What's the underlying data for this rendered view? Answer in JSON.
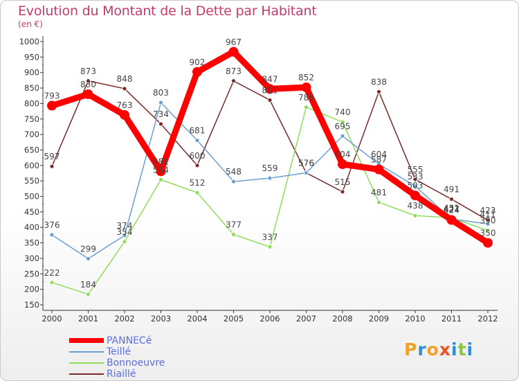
{
  "title": "Evolution du Montant de la Dette par Habitant",
  "unit": "(en €)",
  "brand": {
    "text": "Proxiti",
    "letters": [
      "P",
      "r",
      "o",
      "x",
      "i",
      "t",
      "i"
    ],
    "colors": [
      "#f2a12a",
      "#2a8fd8",
      "#f2a12a",
      "#e8531e",
      "#2a8fd8",
      "#8bc34a",
      "#2a8fd8"
    ]
  },
  "chart_data": {
    "type": "line",
    "title": "Evolution du Montant de la Dette par Habitant",
    "ylabel": "(en €)",
    "x": [
      "2000",
      "2001",
      "2002",
      "2003",
      "2004",
      "2005",
      "2006",
      "2007",
      "2008",
      "2009",
      "2010",
      "2011",
      "2012"
    ],
    "ylim": [
      150,
      1000
    ],
    "yticks": [
      150,
      200,
      250,
      300,
      350,
      400,
      450,
      500,
      550,
      600,
      650,
      700,
      750,
      800,
      850,
      900,
      950,
      1000
    ],
    "grid": false,
    "legend": "bottom-left",
    "series": [
      {
        "name": "PANNECé",
        "color": "#ff0000",
        "values": [
          793,
          830,
          763,
          581,
          902,
          967,
          847,
          852,
          604,
          587,
          503,
          424,
          350
        ]
      },
      {
        "name": "Teillé",
        "color": "#6a9ed0",
        "values": [
          376,
          299,
          374,
          803,
          681,
          548,
          559,
          576,
          695,
          604,
          533,
          427,
          411
        ]
      },
      {
        "name": "Bonnoeuvre",
        "color": "#8fdc5a",
        "values": [
          222,
          184,
          354,
          554,
          512,
          377,
          337,
          788,
          740,
          481,
          438,
          431,
          390
        ]
      },
      {
        "name": "Riaillé",
        "color": "#7a2a2a",
        "values": [
          597,
          873,
          848,
          734,
          600,
          873,
          811,
          576,
          515,
          838,
          555,
          491,
          423
        ]
      }
    ],
    "point_labels": [
      [
        "793",
        "830",
        "763",
        "581",
        "902",
        "967",
        "847",
        "852",
        "604",
        "587",
        "503",
        "424",
        "350"
      ],
      [
        "376",
        "299",
        "374",
        "803",
        "681",
        "548",
        "559",
        "576",
        "695",
        "604",
        "533",
        "427",
        "411"
      ],
      [
        "222",
        "184",
        "354",
        "554",
        "512",
        "377",
        "337",
        "788",
        "740",
        "481",
        "438",
        "431",
        "390"
      ],
      [
        "597",
        "873",
        "848",
        "734",
        "600",
        "873",
        "811",
        "576",
        "515",
        "838",
        "555",
        "491",
        "423"
      ]
    ]
  }
}
